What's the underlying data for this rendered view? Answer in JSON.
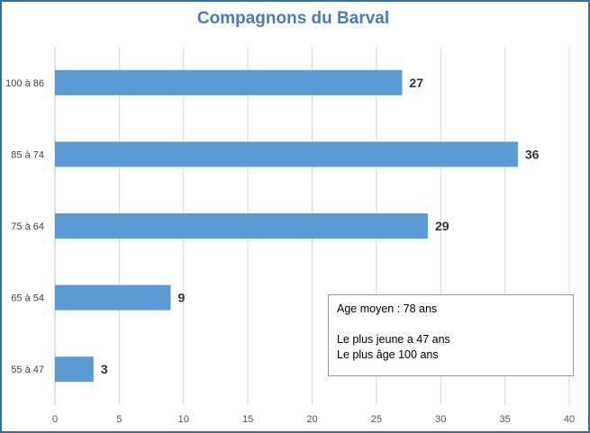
{
  "chart_data": {
    "type": "bar",
    "orientation": "horizontal",
    "title": "Compagnons du Barval",
    "categories": [
      "100 à 86",
      "85 à 74",
      "75 à 64",
      "65 à 54",
      "55 à 47"
    ],
    "values": [
      27,
      36,
      29,
      9,
      3
    ],
    "xlim": [
      0,
      40
    ],
    "x_ticks": [
      0,
      5,
      10,
      15,
      20,
      25,
      30,
      35,
      40
    ],
    "grid": "vertical",
    "bar_color": "#5b9bd5",
    "data_labels": true
  },
  "annotation": {
    "lines": [
      "Age moyen : 78 ans",
      "",
      "Le plus jeune a 47 ans",
      "Le plus âge 100 ans"
    ]
  }
}
